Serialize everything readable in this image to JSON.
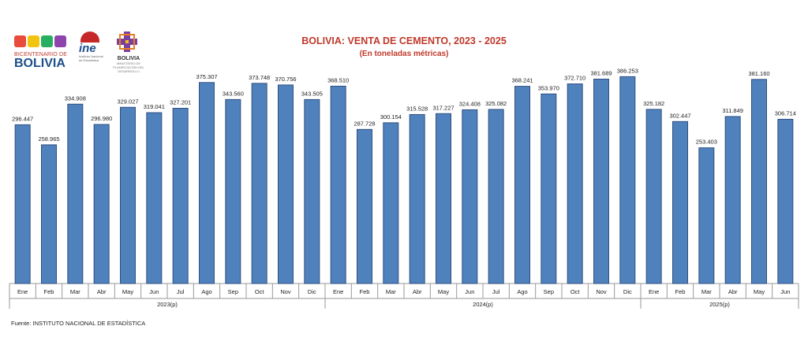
{
  "logos": {
    "bicentenario": {
      "line1": "BICENTENARIO DE",
      "line2": "BOLIVIA"
    },
    "ine": {
      "name": "ine",
      "line1": "Instituto Nacional",
      "line2": "de Estadística"
    },
    "estado": {
      "name": "BOLIVIA",
      "line1": "MINISTERIO DE PLANIFICACIÓN DEL DESARROLLO"
    }
  },
  "colors": {
    "bar": "#4f81bd",
    "title": "#c0392b"
  },
  "chart_data": {
    "type": "bar",
    "title": "BOLIVIA: VENTA DE CEMENTO, 2023 - 2025",
    "subtitle": "(En toneladas métricas)",
    "xlabel": "",
    "ylabel": "",
    "ylim": [
      0,
      400000
    ],
    "grid": false,
    "categories": [
      "Ene",
      "Feb",
      "Mar",
      "Abr",
      "May",
      "Jun",
      "Jul",
      "Ago",
      "Sep",
      "Oct",
      "Nov",
      "Dic",
      "Ene",
      "Feb",
      "Mar",
      "Abr",
      "May",
      "Jun",
      "Jul",
      "Ago",
      "Sep",
      "Oct",
      "Nov",
      "Dic",
      "Ene",
      "Feb",
      "Mar",
      "Abr",
      "May",
      "Jun"
    ],
    "values": [
      296447,
      258965,
      334908,
      296980,
      329027,
      319041,
      327201,
      375307,
      343560,
      373748,
      370756,
      343505,
      368510,
      287728,
      300154,
      315528,
      317227,
      324408,
      325082,
      368241,
      353970,
      372710,
      381689,
      386253,
      325182,
      302447,
      253403,
      311849,
      381160,
      306714
    ],
    "value_labels": [
      "296.447",
      "258.965",
      "334.908",
      "296.980",
      "329.027",
      "319.041",
      "327.201",
      "375.307",
      "343.560",
      "373.748",
      "370.756",
      "343.505",
      "368.510",
      "287.728",
      "300.154",
      "315.528",
      "317.227",
      "324.408",
      "325.082",
      "368.241",
      "353.970",
      "372.710",
      "381.689",
      "386.253",
      "325.182",
      "302.447",
      "253.403",
      "311.849",
      "381.160",
      "306.714"
    ],
    "year_groups": [
      {
        "label": "2023(p)",
        "count": 12
      },
      {
        "label": "2024(p)",
        "count": 12
      },
      {
        "label": "2025(p)",
        "count": 6
      }
    ]
  },
  "source": "Fuente: INSTITUTO NACIONAL DE ESTADÍSTICA"
}
